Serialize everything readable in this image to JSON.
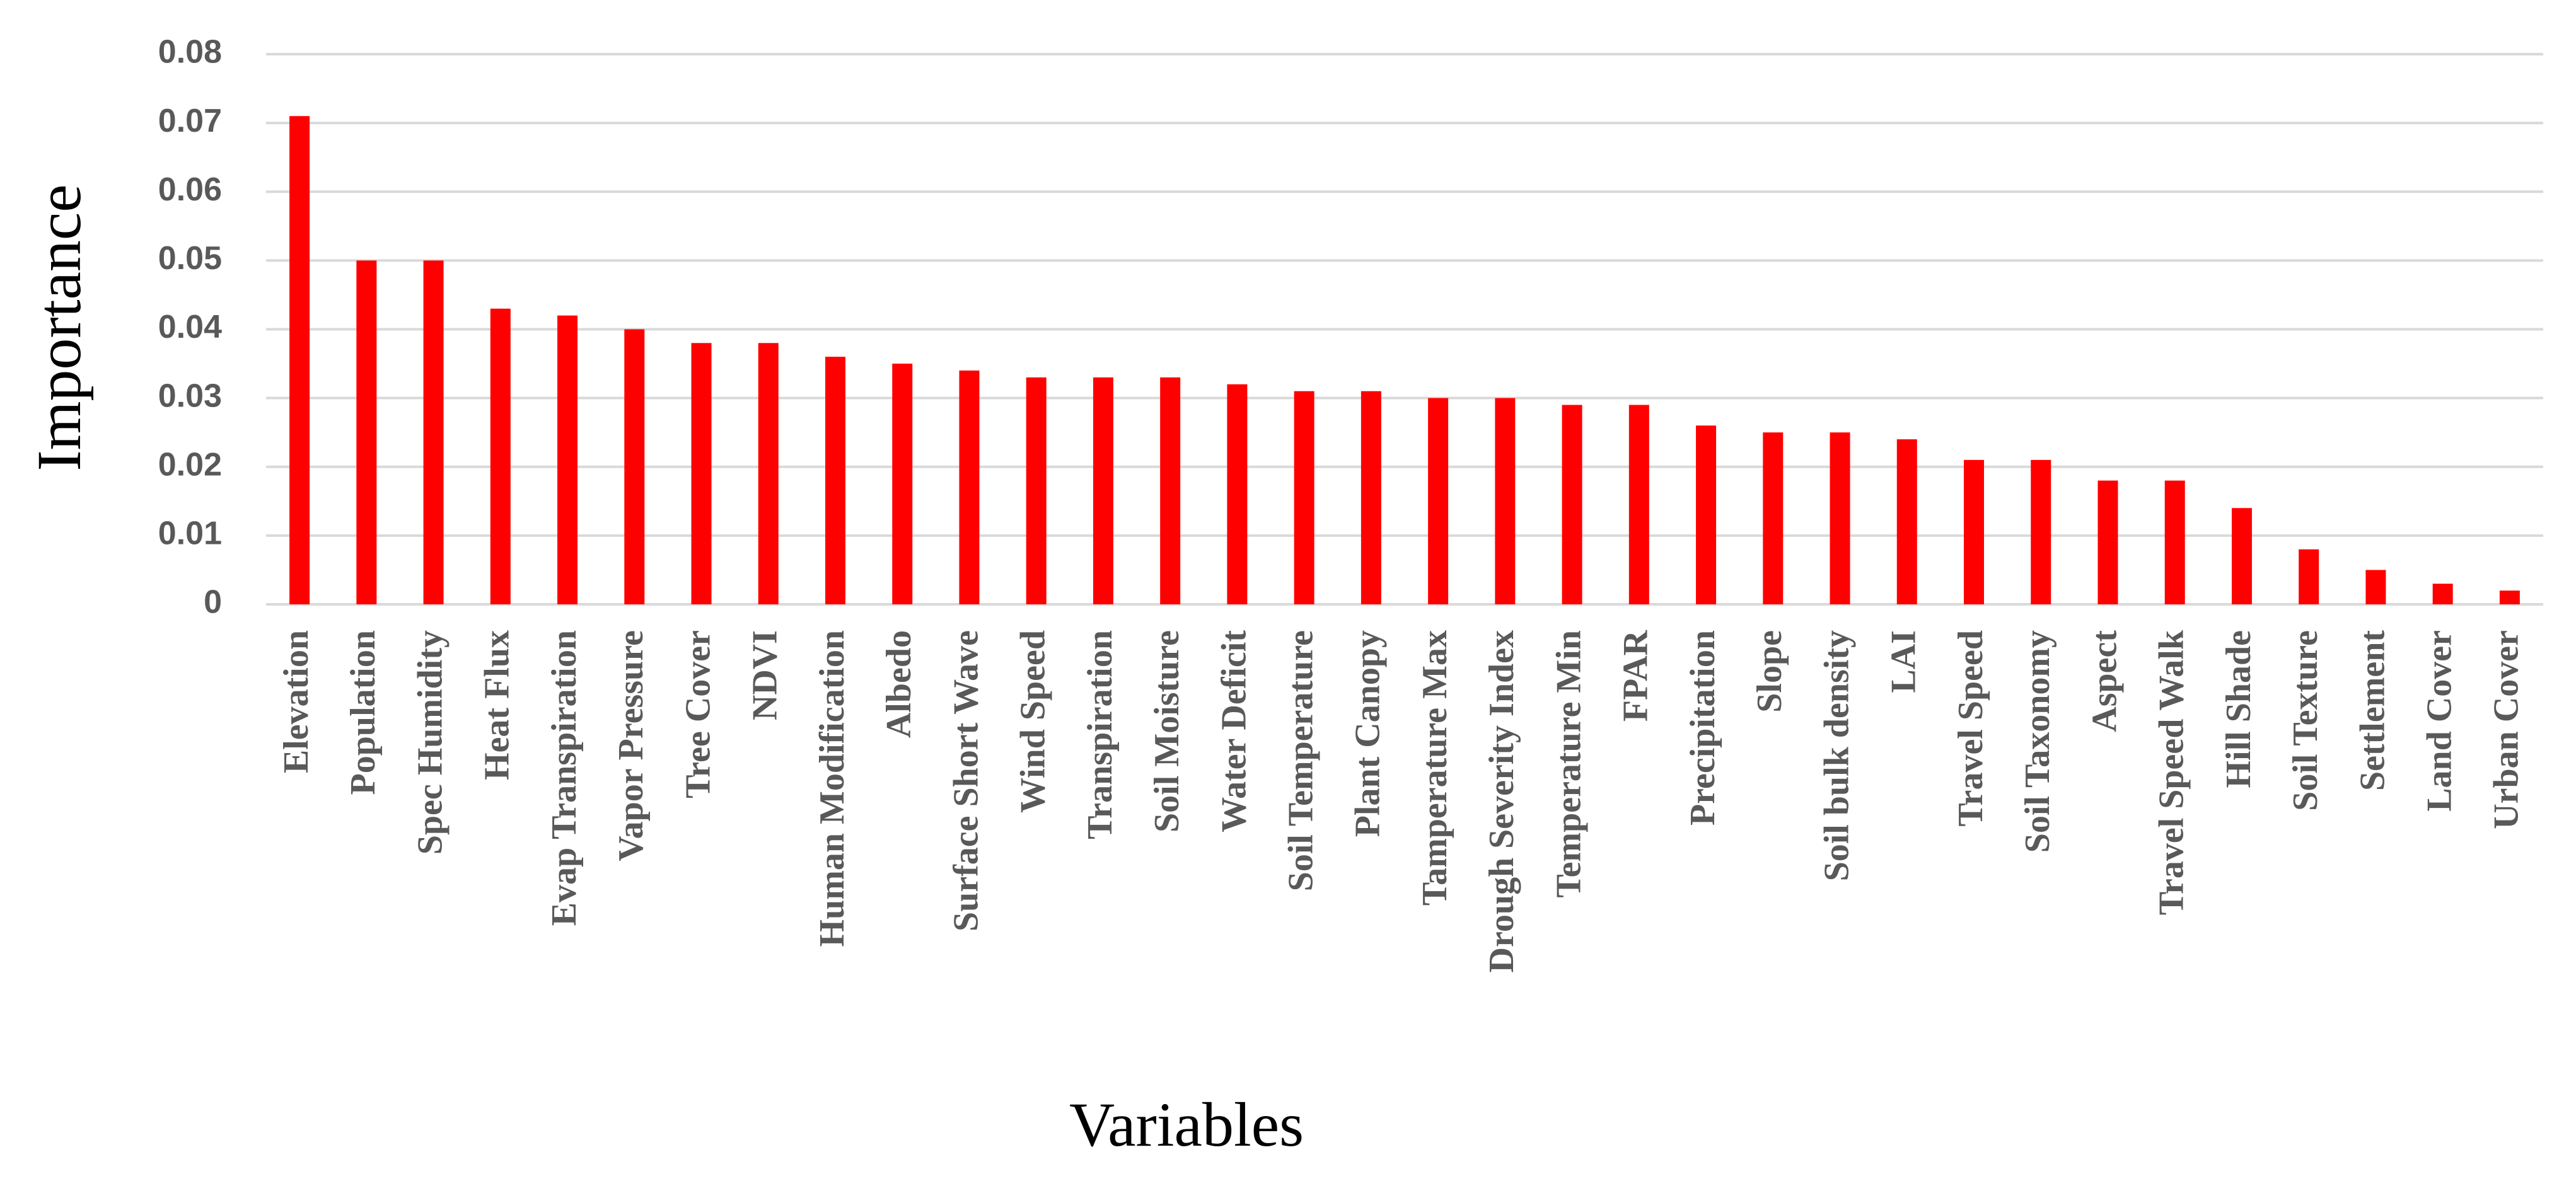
{
  "chart_data": {
    "type": "bar",
    "x_label": "Variables",
    "y_label": "Importance",
    "categories": [
      "Elevation",
      "Population",
      "Spec Humidity",
      "Heat Flux",
      "Evap Transpiration",
      "Vapor Pressure",
      "Tree Cover",
      "NDVI",
      "Human Modification",
      "Albedo",
      "Surface Short Wave",
      "Wind Speed",
      "Transpiration",
      "Soil Moisture",
      "Water Deficit",
      "Soil Temperature",
      "Plant Canopy",
      "Tamperature Max",
      "Drough Severity Index",
      "Temperature Min",
      "FPAR",
      "Precipitation",
      "Slope",
      "Soil bulk density",
      "LAI",
      "Travel Speed",
      "Soil Taxonomy",
      "Aspect",
      "Travel Speed Walk",
      "Hill Shade",
      "Soil Texture",
      "Settlement",
      "Land Cover",
      "Urban Cover"
    ],
    "values": [
      0.071,
      0.05,
      0.05,
      0.043,
      0.042,
      0.04,
      0.038,
      0.038,
      0.036,
      0.035,
      0.034,
      0.033,
      0.033,
      0.033,
      0.032,
      0.031,
      0.031,
      0.03,
      0.03,
      0.029,
      0.029,
      0.026,
      0.025,
      0.025,
      0.024,
      0.021,
      0.021,
      0.018,
      0.018,
      0.014,
      0.008,
      0.005,
      0.003,
      0.002
    ],
    "color": "#ff0000",
    "ylim": [
      0,
      0.08
    ],
    "yticks": [
      0,
      0.01,
      0.02,
      0.03,
      0.04,
      0.05,
      0.06,
      0.07,
      0.08
    ],
    "grid": true
  }
}
